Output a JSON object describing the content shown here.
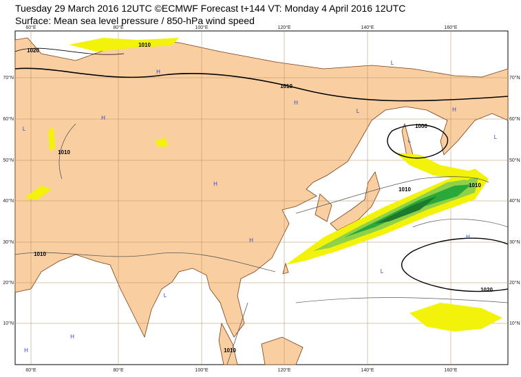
{
  "header": {
    "title": "Tuesday 29 March 2016 12UTC ©ECMWF Forecast t+144 VT: Monday 4 April 2016 12UTC",
    "subtitle": "Surface: Mean sea level pressure / 850-hPa wind speed"
  },
  "map": {
    "longitude_labels": [
      "60°E",
      "80°E",
      "100°E",
      "120°E",
      "140°E",
      "160°E"
    ],
    "latitude_labels": [
      "70°N",
      "60°N",
      "50°N",
      "40°N",
      "30°N",
      "20°N",
      "10°N"
    ],
    "isobar_labels": [
      "1020",
      "1010",
      "1010",
      "1010",
      "1000",
      "1010",
      "1010",
      "1010",
      "1020",
      "1010"
    ],
    "pressure_centers": [
      "H",
      "L",
      "H",
      "L",
      "H",
      "H",
      "L",
      "H",
      "L",
      "H",
      "L",
      "H",
      "H",
      "L",
      "H",
      "L"
    ]
  }
}
